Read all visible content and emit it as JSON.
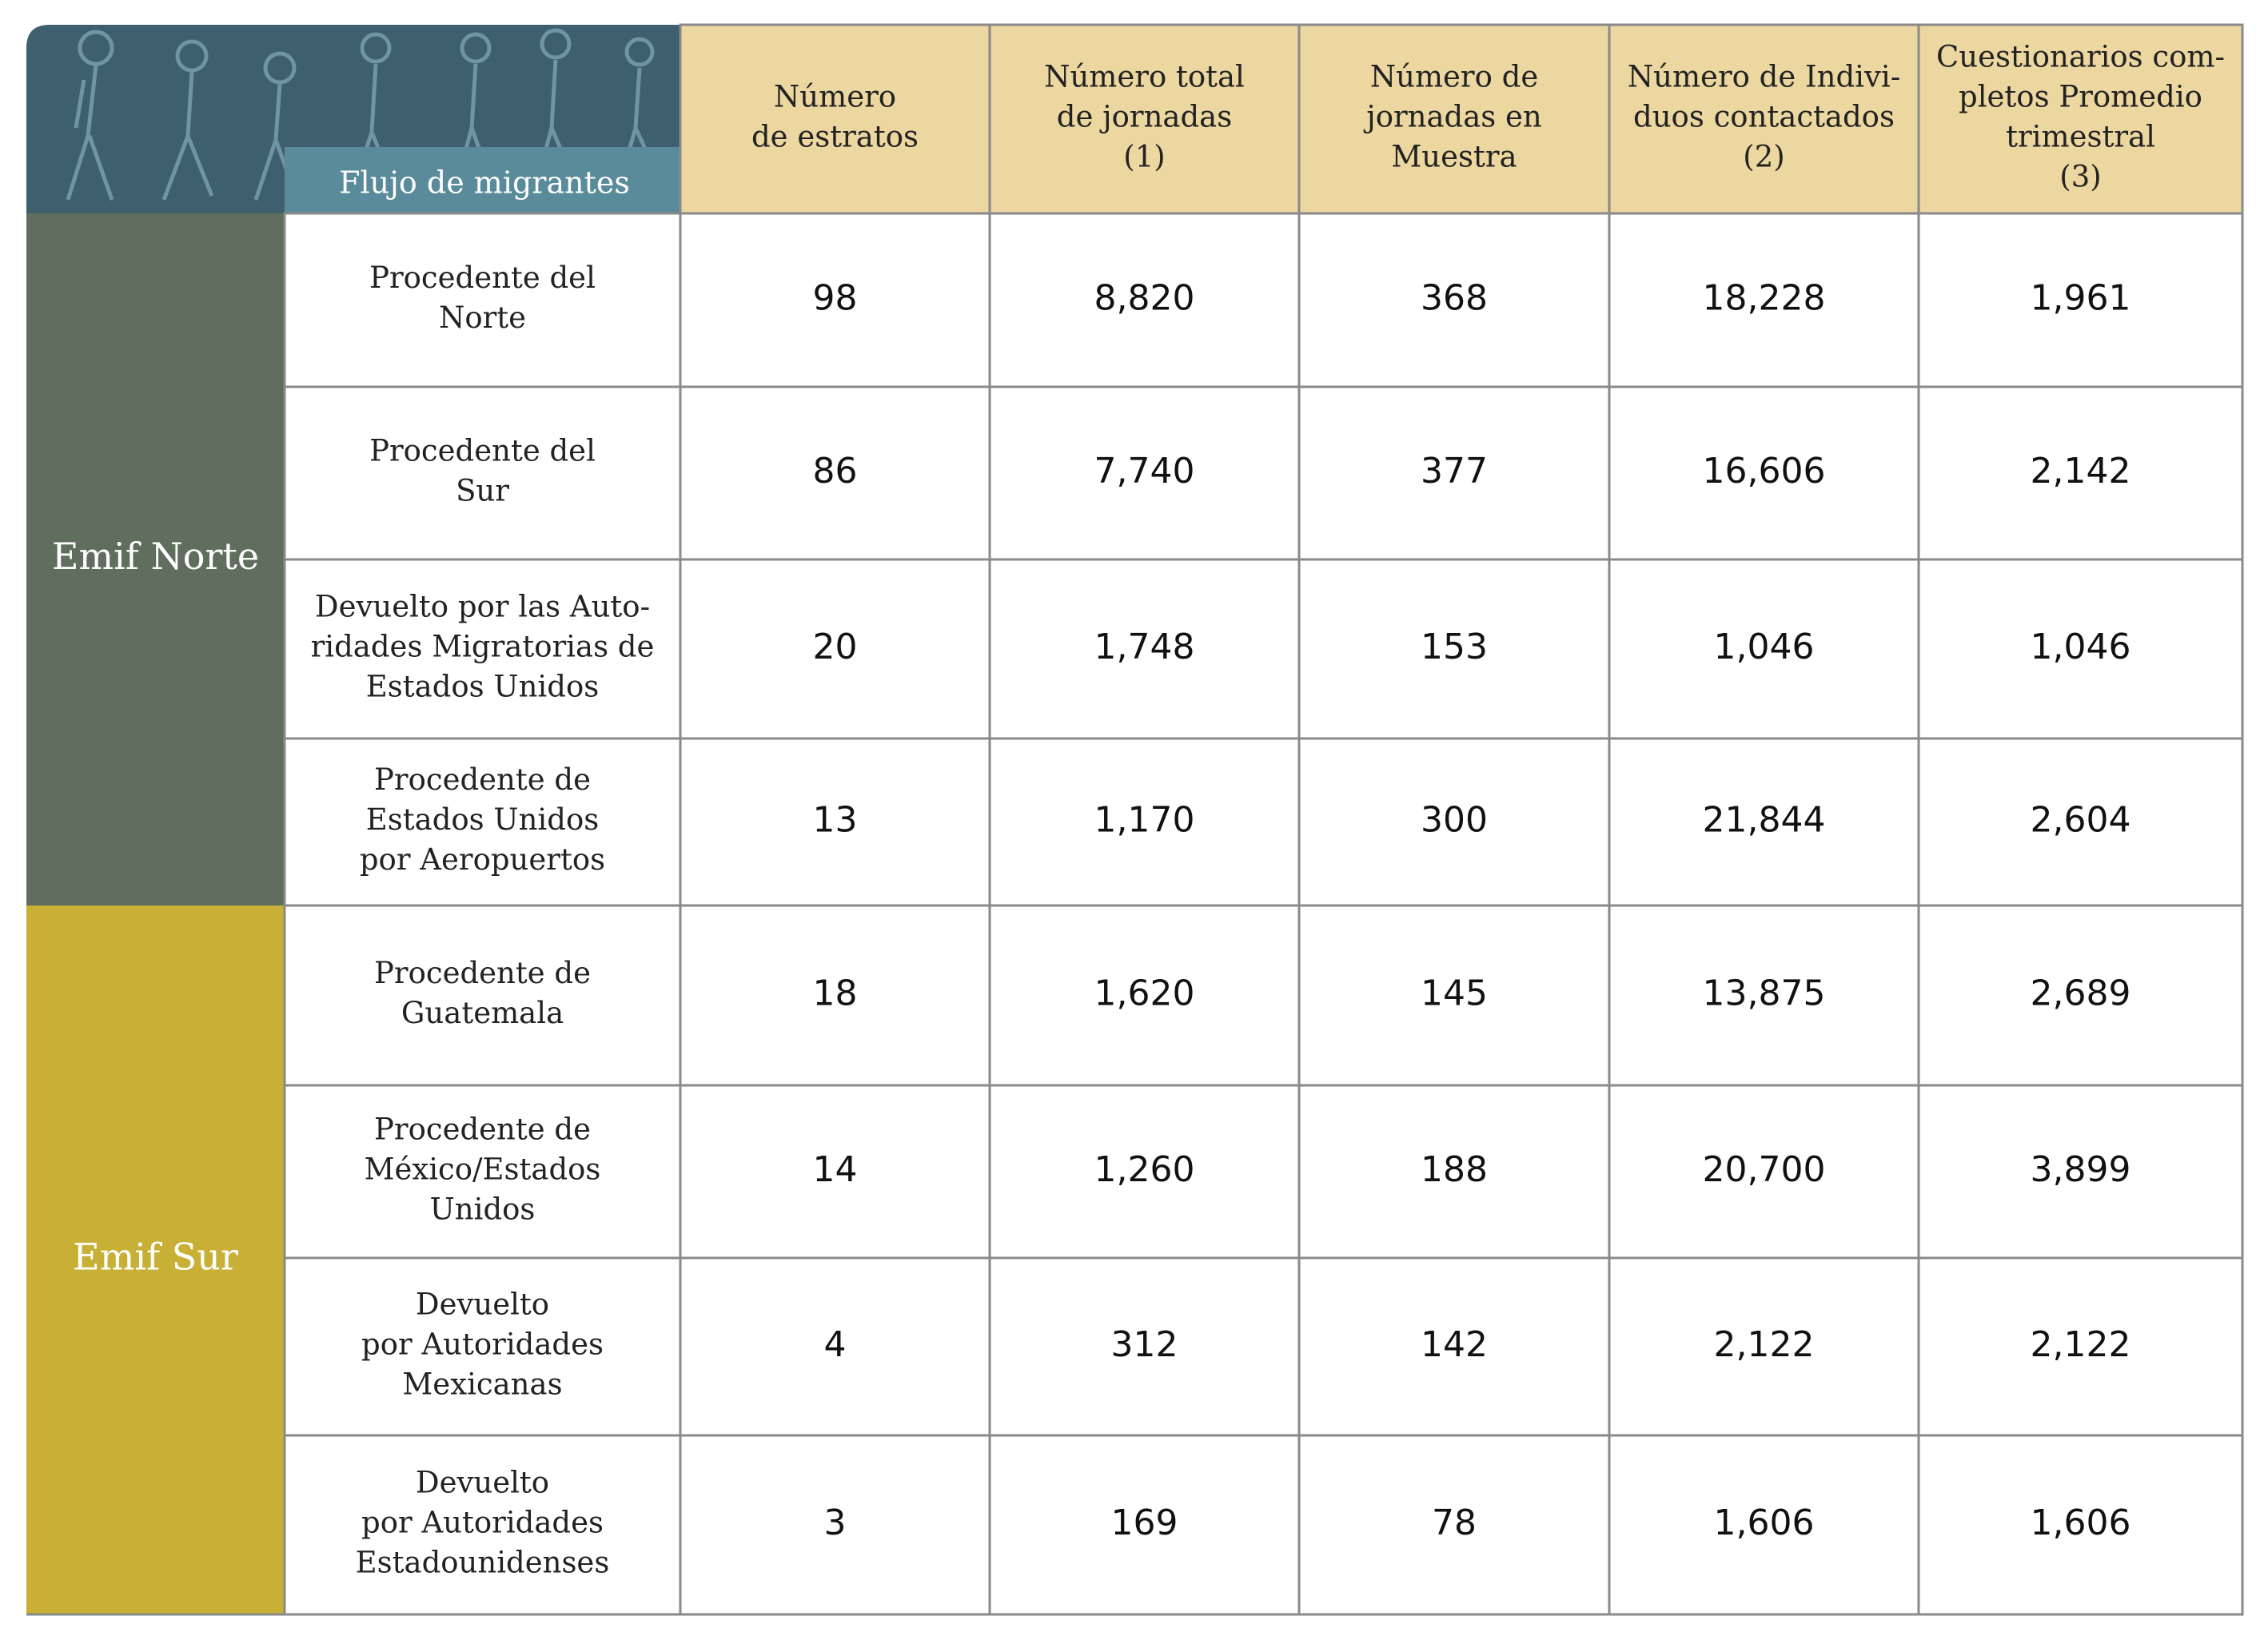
{
  "header": {
    "corner_label": "Flujo de migrantes",
    "columns": [
      [
        "Número",
        "de estratos"
      ],
      [
        "Número total",
        "de jornadas",
        "(1)"
      ],
      [
        "Número de",
        "jornadas en",
        "Muestra"
      ],
      [
        "Número de Indivi-",
        "duos contactados",
        "(2)"
      ],
      [
        "Cuestionarios com-",
        "pletos Promedio",
        "trimestral",
        "(3)"
      ]
    ]
  },
  "groups": [
    {
      "name": "Emif Norte",
      "rows": [
        {
          "label": [
            "Procedente del",
            "Norte"
          ],
          "values": [
            "98",
            "8,820",
            "368",
            "18,228",
            "1,961"
          ]
        },
        {
          "label": [
            "Procedente del",
            "Sur"
          ],
          "values": [
            "86",
            "7,740",
            "377",
            "16,606",
            "2,142"
          ]
        },
        {
          "label": [
            "Devuelto por las Auto-",
            "ridades Migratorias de",
            "Estados Unidos"
          ],
          "values": [
            "20",
            "1,748",
            "153",
            "1,046",
            "1,046"
          ]
        },
        {
          "label": [
            "Procedente de",
            "Estados Unidos",
            "por Aeropuertos"
          ],
          "values": [
            "13",
            "1,170",
            "300",
            "21,844",
            "2,604"
          ]
        }
      ]
    },
    {
      "name": "Emif Sur",
      "rows": [
        {
          "label": [
            "Procedente de",
            "Guatemala"
          ],
          "values": [
            "18",
            "1,620",
            "145",
            "13,875",
            "2,689"
          ]
        },
        {
          "label": [
            "Procedente de",
            "México/Estados",
            "Unidos"
          ],
          "values": [
            "14",
            "1,260",
            "188",
            "20,700",
            "3,899"
          ]
        },
        {
          "label": [
            "Devuelto",
            "por Autoridades",
            "Mexicanas"
          ],
          "values": [
            "4",
            "312",
            "142",
            "2,122",
            "2,122"
          ]
        },
        {
          "label": [
            "Devuelto",
            "por Autoridades",
            "Estadounidenses"
          ],
          "values": [
            "3",
            "169",
            "78",
            "1,606",
            "1,606"
          ]
        }
      ]
    }
  ]
}
